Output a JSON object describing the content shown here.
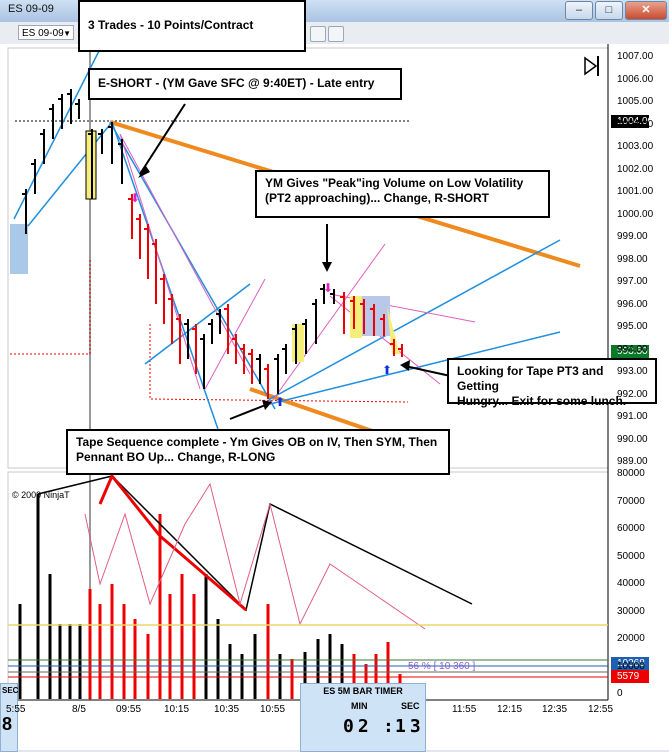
{
  "window": {
    "title": "ES 09-09",
    "controls": {
      "minimize": "–",
      "maximize": "□",
      "close": "✕"
    }
  },
  "toolbar": {
    "instrument": "ES 09-09"
  },
  "notes": {
    "trades": "3 Trades - 10 Points/Contract",
    "eshort": "E-SHORT - (YM Gave SFC @ 9:40ET) - Late entry",
    "peak_line1": "YM Gives \"Peak\"ing Volume on Low Volatility",
    "peak_line2": "(PT2 approaching)... Change, R-SHORT",
    "tape_line1": "Looking for Tape PT3 and Getting",
    "tape_line2": "Hungry... Exit for  some lunch.",
    "seq_line1": "Tape Sequence complete - Ym Gives OB on IV, Then SYM, Then",
    "seq_line2": "Pennant BO Up... Change, R-LONG"
  },
  "price_axis": {
    "ticks": [
      "1007.00",
      "1006.00",
      "1005.00",
      "1004.00",
      "1003.00",
      "1002.00",
      "1001.00",
      "1000.00",
      "999.00",
      "998.00",
      "997.00",
      "996.00",
      "995.00",
      "994.00",
      "993.00",
      "992.00",
      "991.00",
      "990.00",
      "989.00"
    ],
    "last_price": "1004.00",
    "current_price": "993.50"
  },
  "volume_axis": {
    "ticks": [
      "80000",
      "70000",
      "60000",
      "50000",
      "40000",
      "30000",
      "20000",
      "10000",
      "0"
    ],
    "tag_blue": "10368",
    "tag_red": "5579",
    "pct_label": "56 % [ 10 360 ]"
  },
  "time_axis": {
    "ticks": [
      "5:55",
      "8/5",
      "09:55",
      "10:15",
      "10:35",
      "10:55",
      "11:55",
      "12:15",
      "12:35",
      "12:55"
    ]
  },
  "copyright": "© 2009 NinjaT",
  "timer": {
    "title": "ES 5M BAR TIMER",
    "min_label": "MIN",
    "sec_label": "SEC",
    "min": "02",
    "sec": "13"
  },
  "left_panel": {
    "label": "SEC",
    "value": "8"
  },
  "colors": {
    "up": "#000000",
    "down": "#e00000",
    "fib": "#1f8fe0",
    "channel": "#ee8a1e",
    "note_border": "#000000"
  }
}
